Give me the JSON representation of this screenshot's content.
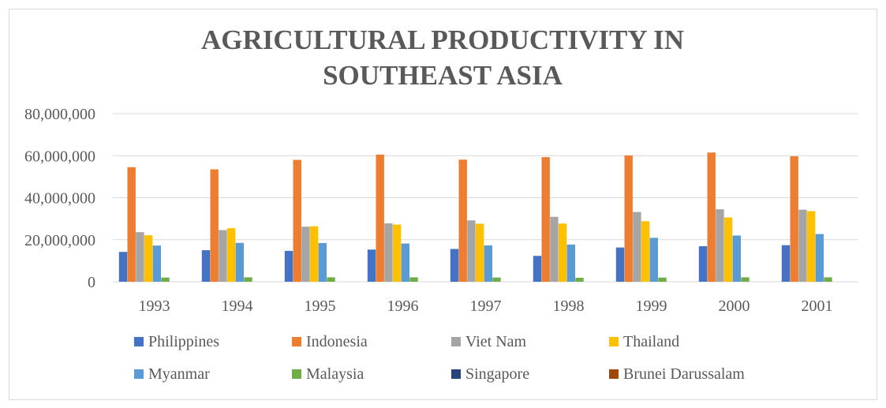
{
  "chart_data": {
    "type": "bar",
    "title_lines": [
      "AGRICULTURAL PRODUCTIVITY IN",
      "SOUTHEAST ASIA"
    ],
    "categories": [
      "1993",
      "1994",
      "1995",
      "1996",
      "1997",
      "1998",
      "1999",
      "2000",
      "2001"
    ],
    "y_ticks": [
      "0",
      "20,000,000",
      "40,000,000",
      "60,000,000",
      "80,000,000"
    ],
    "ylim": [
      0,
      80000000
    ],
    "grid": true,
    "legend_position": "bottom",
    "series": [
      {
        "name": "Philippines",
        "color": "#4472c4",
        "values": [
          14200000,
          15000000,
          14700000,
          15300000,
          15600000,
          12300000,
          16300000,
          16900000,
          17400000
        ]
      },
      {
        "name": "Indonesia",
        "color": "#ed7d31",
        "values": [
          54500000,
          53500000,
          58000000,
          60500000,
          58100000,
          59300000,
          60100000,
          61500000,
          59700000
        ]
      },
      {
        "name": "Viet Nam",
        "color": "#a5a5a5",
        "values": [
          23600000,
          24600000,
          26200000,
          27800000,
          29200000,
          30900000,
          33200000,
          34500000,
          34300000
        ]
      },
      {
        "name": "Thailand",
        "color": "#ffc000",
        "values": [
          22100000,
          25500000,
          26400000,
          27200000,
          27600000,
          27700000,
          28800000,
          30600000,
          33600000
        ]
      },
      {
        "name": "Myanmar",
        "color": "#5b9bd5",
        "values": [
          17200000,
          18500000,
          18400000,
          18200000,
          17300000,
          17700000,
          20900000,
          22000000,
          22700000
        ]
      },
      {
        "name": "Malaysia",
        "color": "#70ad47",
        "values": [
          2000000,
          2100000,
          2100000,
          2100000,
          2000000,
          1900000,
          2000000,
          2100000,
          2100000
        ]
      },
      {
        "name": "Singapore",
        "color": "#264478",
        "values": [
          0,
          0,
          0,
          0,
          0,
          0,
          0,
          0,
          0
        ]
      },
      {
        "name": "Brunei Darussalam",
        "color": "#9e480e",
        "values": [
          0,
          0,
          0,
          0,
          0,
          0,
          0,
          0,
          0
        ]
      }
    ]
  }
}
